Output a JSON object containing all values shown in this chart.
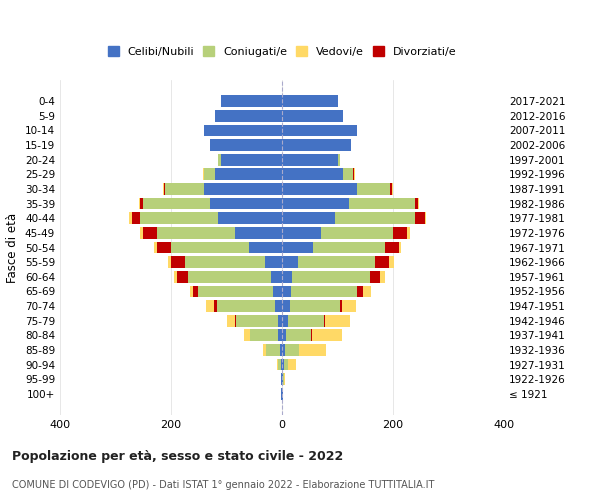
{
  "age_groups": [
    "100+",
    "95-99",
    "90-94",
    "85-89",
    "80-84",
    "75-79",
    "70-74",
    "65-69",
    "60-64",
    "55-59",
    "50-54",
    "45-49",
    "40-44",
    "35-39",
    "30-34",
    "25-29",
    "20-24",
    "15-19",
    "10-14",
    "5-9",
    "0-4"
  ],
  "birth_years": [
    "≤ 1921",
    "1922-1926",
    "1927-1931",
    "1932-1936",
    "1937-1941",
    "1942-1946",
    "1947-1951",
    "1952-1956",
    "1957-1961",
    "1962-1966",
    "1967-1971",
    "1972-1976",
    "1977-1981",
    "1982-1986",
    "1987-1991",
    "1992-1996",
    "1997-2001",
    "2002-2006",
    "2007-2011",
    "2012-2016",
    "2017-2021"
  ],
  "males": {
    "celibi": [
      1,
      1,
      2,
      4,
      7,
      8,
      12,
      16,
      20,
      30,
      60,
      85,
      115,
      130,
      140,
      120,
      110,
      130,
      140,
      120,
      110
    ],
    "coniugati": [
      0,
      1,
      5,
      25,
      50,
      75,
      105,
      135,
      150,
      145,
      140,
      140,
      140,
      120,
      70,
      20,
      5,
      0,
      0,
      0,
      0
    ],
    "vedovi": [
      0,
      0,
      2,
      5,
      10,
      15,
      15,
      5,
      5,
      5,
      5,
      5,
      5,
      2,
      2,
      2,
      0,
      0,
      0,
      0,
      0
    ],
    "divorziati": [
      0,
      0,
      0,
      0,
      1,
      2,
      5,
      10,
      20,
      25,
      25,
      25,
      15,
      5,
      3,
      1,
      0,
      0,
      0,
      0,
      0
    ]
  },
  "females": {
    "nubili": [
      1,
      1,
      3,
      5,
      8,
      10,
      14,
      16,
      18,
      28,
      55,
      70,
      95,
      120,
      135,
      110,
      100,
      125,
      135,
      110,
      100
    ],
    "coniugate": [
      0,
      2,
      8,
      25,
      45,
      65,
      90,
      120,
      140,
      140,
      130,
      130,
      145,
      120,
      60,
      18,
      5,
      0,
      0,
      0,
      0
    ],
    "vedove": [
      1,
      2,
      15,
      50,
      55,
      45,
      25,
      15,
      10,
      8,
      5,
      5,
      2,
      2,
      2,
      2,
      0,
      0,
      0,
      0,
      0
    ],
    "divorziate": [
      0,
      0,
      0,
      0,
      1,
      2,
      5,
      10,
      18,
      25,
      25,
      25,
      18,
      5,
      3,
      1,
      0,
      0,
      0,
      0,
      0
    ]
  },
  "colors": {
    "celibi": "#4472C4",
    "coniugati": "#B7D07A",
    "vedovi": "#FFD966",
    "divorziati": "#C00000"
  },
  "xlim": 400,
  "title": "Popolazione per età, sesso e stato civile - 2022",
  "subtitle": "COMUNE DI CODEVIGO (PD) - Dati ISTAT 1° gennaio 2022 - Elaborazione TUTTITALIA.IT",
  "ylabel_left": "Fasce di età",
  "legend_labels": [
    "Celibi/Nubili",
    "Coniugati/e",
    "Vedovi/e",
    "Divorziati/e"
  ],
  "background_color": "#ffffff",
  "grid_color": "#dddddd"
}
